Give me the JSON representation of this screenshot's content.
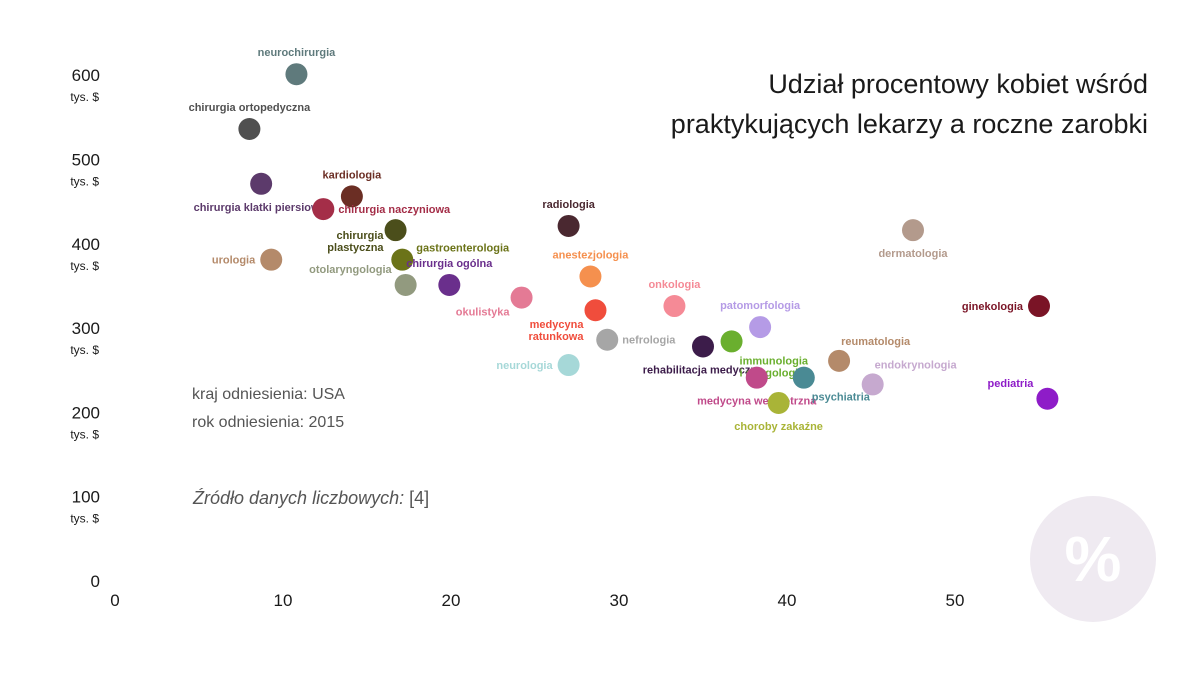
{
  "title": {
    "line1": "Udział procentowy kobiet wśród",
    "line2": "praktykujących lekarzy a roczne zarobki"
  },
  "info": {
    "country": "kraj odniesienia: USA",
    "year": "rok odniesienia: 2015"
  },
  "source": {
    "label": "Źródło danych liczbowych:",
    "ref": "[4]"
  },
  "badge": {
    "symbol": "%"
  },
  "chart_data": {
    "type": "scatter",
    "x_ticks": [
      0,
      10,
      20,
      30,
      40,
      50
    ],
    "y_ticks": [
      0,
      100,
      200,
      300,
      400,
      500,
      600
    ],
    "y_unit": "tys. $",
    "xlim": [
      0,
      57
    ],
    "ylim": [
      0,
      620
    ],
    "grid": false,
    "points": [
      {
        "label": "neurochirurgia",
        "x": 10.8,
        "y": 600,
        "color": "#5f7a7c",
        "text_color": "#5f7a7c",
        "anchor": "above"
      },
      {
        "label": "chirurgia ortopedyczna",
        "x": 8.0,
        "y": 535,
        "color": "#505050",
        "text_color": "#505050",
        "anchor": "above"
      },
      {
        "label": "chirurgia klatki piersiowej",
        "x": 8.7,
        "y": 470,
        "color": "#5c3a6b",
        "text_color": "#5c3a6b",
        "anchor": "below"
      },
      {
        "label": "kardiologia",
        "x": 14.1,
        "y": 455,
        "color": "#6b2e24",
        "text_color": "#6b2e24",
        "anchor": "above"
      },
      {
        "label": "chirurgia naczyniowa",
        "x": 12.4,
        "y": 440,
        "color": "#a42e48",
        "text_color": "#a42e48",
        "anchor": "right"
      },
      {
        "label": "chirurgia plastyczna",
        "x": 16.7,
        "y": 415,
        "color": "#4b4e1b",
        "text_color": "#4b4e1b",
        "anchor": "below-left"
      },
      {
        "label": "urologia",
        "x": 9.3,
        "y": 380,
        "color": "#b48a6a",
        "text_color": "#b48a6a",
        "anchor": "left"
      },
      {
        "label": "gastroenterologia",
        "x": 17.1,
        "y": 380,
        "color": "#6b7318",
        "text_color": "#6b7318",
        "anchor": "right-up"
      },
      {
        "label": "otolaryngologia",
        "x": 17.3,
        "y": 350,
        "color": "#929a7f",
        "text_color": "#929a7f",
        "anchor": "above-left"
      },
      {
        "label": "chirurgia ogólna",
        "x": 19.9,
        "y": 350,
        "color": "#6a2f8c",
        "text_color": "#6a2f8c",
        "anchor": "above"
      },
      {
        "label": "radiologia",
        "x": 27.0,
        "y": 420,
        "color": "#4a2830",
        "text_color": "#4a2830",
        "anchor": "above"
      },
      {
        "label": "anestezjologia",
        "x": 28.3,
        "y": 360,
        "color": "#f5904e",
        "text_color": "#f5904e",
        "anchor": "above"
      },
      {
        "label": "okulistyka",
        "x": 24.2,
        "y": 335,
        "color": "#e47a95",
        "text_color": "#e47a95",
        "anchor": "below-left"
      },
      {
        "label": "medycyna ratunkowa",
        "x": 28.6,
        "y": 320,
        "color": "#f04d3c",
        "text_color": "#f04d3c",
        "anchor": "below-left"
      },
      {
        "label": "nefrologia",
        "x": 29.3,
        "y": 285,
        "color": "#a6a6a6",
        "text_color": "#a6a6a6",
        "anchor": "right"
      },
      {
        "label": "neurologia",
        "x": 27.0,
        "y": 255,
        "color": "#a6d8d8",
        "text_color": "#a6d8d8",
        "anchor": "left"
      },
      {
        "label": "onkologia",
        "x": 33.3,
        "y": 325,
        "color": "#f58a96",
        "text_color": "#f58a96",
        "anchor": "above"
      },
      {
        "label": "rehabilitacja medyczna",
        "x": 35.0,
        "y": 277,
        "color": "#3c1c4a",
        "text_color": "#3c1c4a",
        "anchor": "below"
      },
      {
        "label": "immunologia i alergologia",
        "x": 36.7,
        "y": 283,
        "color": "#6aaf2e",
        "text_color": "#6aaf2e",
        "anchor": "below-right"
      },
      {
        "label": "patomorfologia",
        "x": 38.4,
        "y": 300,
        "color": "#b59be6",
        "text_color": "#b59be6",
        "anchor": "above"
      },
      {
        "label": "medycyna wewnętrzna",
        "x": 38.2,
        "y": 240,
        "color": "#c04a8a",
        "text_color": "#c04a8a",
        "anchor": "below"
      },
      {
        "label": "choroby zakaźne",
        "x": 39.5,
        "y": 210,
        "color": "#a9b437",
        "text_color": "#a9b437",
        "anchor": "below"
      },
      {
        "label": "psychiatria",
        "x": 41.0,
        "y": 240,
        "color": "#4a8a94",
        "text_color": "#4a8a94",
        "anchor": "below-right"
      },
      {
        "label": "reumatologia",
        "x": 43.1,
        "y": 260,
        "color": "#b48a6a",
        "text_color": "#b48a6a",
        "anchor": "above-right"
      },
      {
        "label": "endokrynologia",
        "x": 45.1,
        "y": 232,
        "color": "#c6a9cf",
        "text_color": "#c6a9cf",
        "anchor": "above-right"
      },
      {
        "label": "dermatologia",
        "x": 47.5,
        "y": 415,
        "color": "#b39a8c",
        "text_color": "#b39a8c",
        "anchor": "below"
      },
      {
        "label": "ginekologia",
        "x": 55.0,
        "y": 325,
        "color": "#7a1426",
        "text_color": "#7a1426",
        "anchor": "left"
      },
      {
        "label": "pediatria",
        "x": 55.5,
        "y": 215,
        "color": "#8e1cc8",
        "text_color": "#8e1cc8",
        "anchor": "above-left"
      }
    ]
  }
}
